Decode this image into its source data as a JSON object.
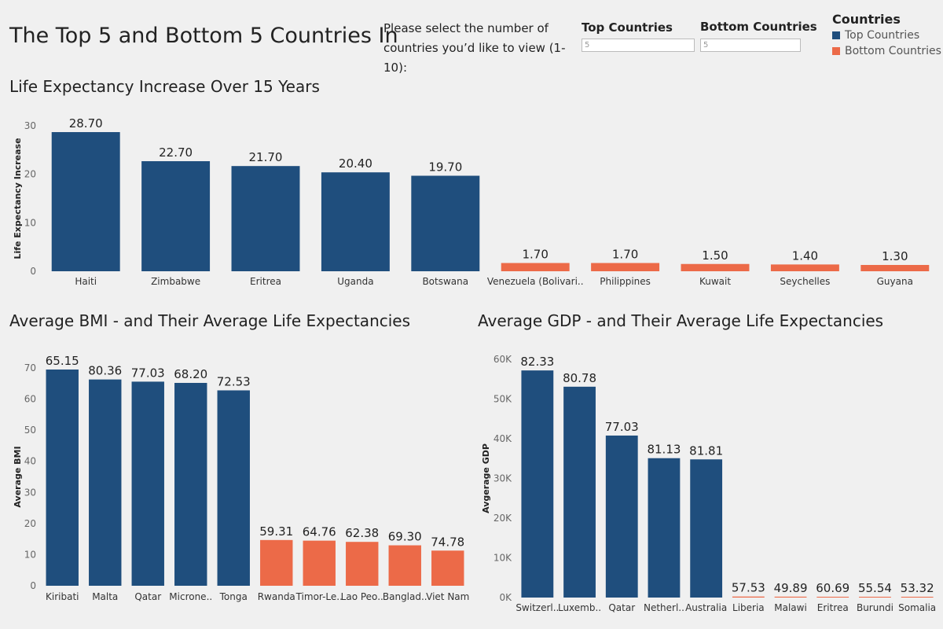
{
  "title": "The Top 5 and Bottom 5 Countries In",
  "controls": {
    "prompt_line1": "Please select the number of",
    "prompt_line2": "countries you’d like to view (1-10):",
    "top_label": "Top Countries",
    "top_value": "5",
    "bottom_label": "Bottom Countries",
    "bottom_value": "5"
  },
  "legend": {
    "title": "Countries",
    "items": [
      {
        "label": "Top Countries",
        "color": "#1f4e7d"
      },
      {
        "label": "Bottom Countries",
        "color": "#ec6a48"
      }
    ]
  },
  "chart_data": [
    {
      "type": "bar",
      "title": "Life Expectancy Increase Over 15 Years",
      "ylabel": "Life Expectancy Increase",
      "ylim": [
        0,
        30
      ],
      "yticks": [
        0,
        10,
        20,
        30
      ],
      "categories": [
        "Haiti",
        "Zimbabwe",
        "Eritrea",
        "Uganda",
        "Botswana",
        "Venezuela (Bolivari..",
        "Philippines",
        "Kuwait",
        "Seychelles",
        "Guyana"
      ],
      "values": [
        28.7,
        22.7,
        21.7,
        20.4,
        19.7,
        1.7,
        1.7,
        1.5,
        1.4,
        1.3
      ],
      "labels": [
        "28.70",
        "22.70",
        "21.70",
        "20.40",
        "19.70",
        "1.70",
        "1.70",
        "1.50",
        "1.40",
        "1.30"
      ],
      "groups": [
        "top",
        "top",
        "top",
        "top",
        "top",
        "bottom",
        "bottom",
        "bottom",
        "bottom",
        "bottom"
      ]
    },
    {
      "type": "bar",
      "title": "Average BMI - and Their Average Life Expectancies",
      "ylabel": "Average BMI",
      "ylim": [
        0,
        70
      ],
      "yticks": [
        0,
        10,
        20,
        30,
        40,
        50,
        60,
        70
      ],
      "categories": [
        "Kiribati",
        "Malta",
        "Qatar",
        "Microne..",
        "Tonga",
        "Rwanda",
        "Timor-Le..",
        "Lao Peo..",
        "Banglad..",
        "Viet Nam"
      ],
      "values": [
        69.5,
        66.3,
        65.6,
        65.2,
        62.8,
        14.7,
        14.5,
        14.1,
        13.0,
        11.3
      ],
      "labels": [
        "65.15",
        "80.36",
        "77.03",
        "68.20",
        "72.53",
        "59.31",
        "64.76",
        "62.38",
        "69.30",
        "74.78"
      ],
      "groups": [
        "top",
        "top",
        "top",
        "top",
        "top",
        "bottom",
        "bottom",
        "bottom",
        "bottom",
        "bottom"
      ]
    },
    {
      "type": "bar",
      "title": "Average GDP - and Their Average Life Expectancies",
      "ylabel": "Avgerage GDP",
      "ylim": [
        0,
        60000
      ],
      "yticks": [
        0,
        10000,
        20000,
        30000,
        40000,
        50000,
        60000
      ],
      "yticklabels": [
        "0K",
        "10K",
        "20K",
        "30K",
        "40K",
        "50K",
        "60K"
      ],
      "categories": [
        "Switzerl..",
        "Luxemb..",
        "Qatar",
        "Netherl..",
        "Australia",
        "Liberia",
        "Malawi",
        "Eritrea",
        "Burundi",
        "Somalia"
      ],
      "values": [
        57200,
        53100,
        40800,
        35100,
        34800,
        250,
        220,
        180,
        150,
        100
      ],
      "labels": [
        "82.33",
        "80.78",
        "77.03",
        "81.13",
        "81.81",
        "57.53",
        "49.89",
        "60.69",
        "55.54",
        "53.32"
      ],
      "groups": [
        "top",
        "top",
        "top",
        "top",
        "top",
        "bottom",
        "bottom",
        "bottom",
        "bottom",
        "bottom"
      ]
    }
  ]
}
